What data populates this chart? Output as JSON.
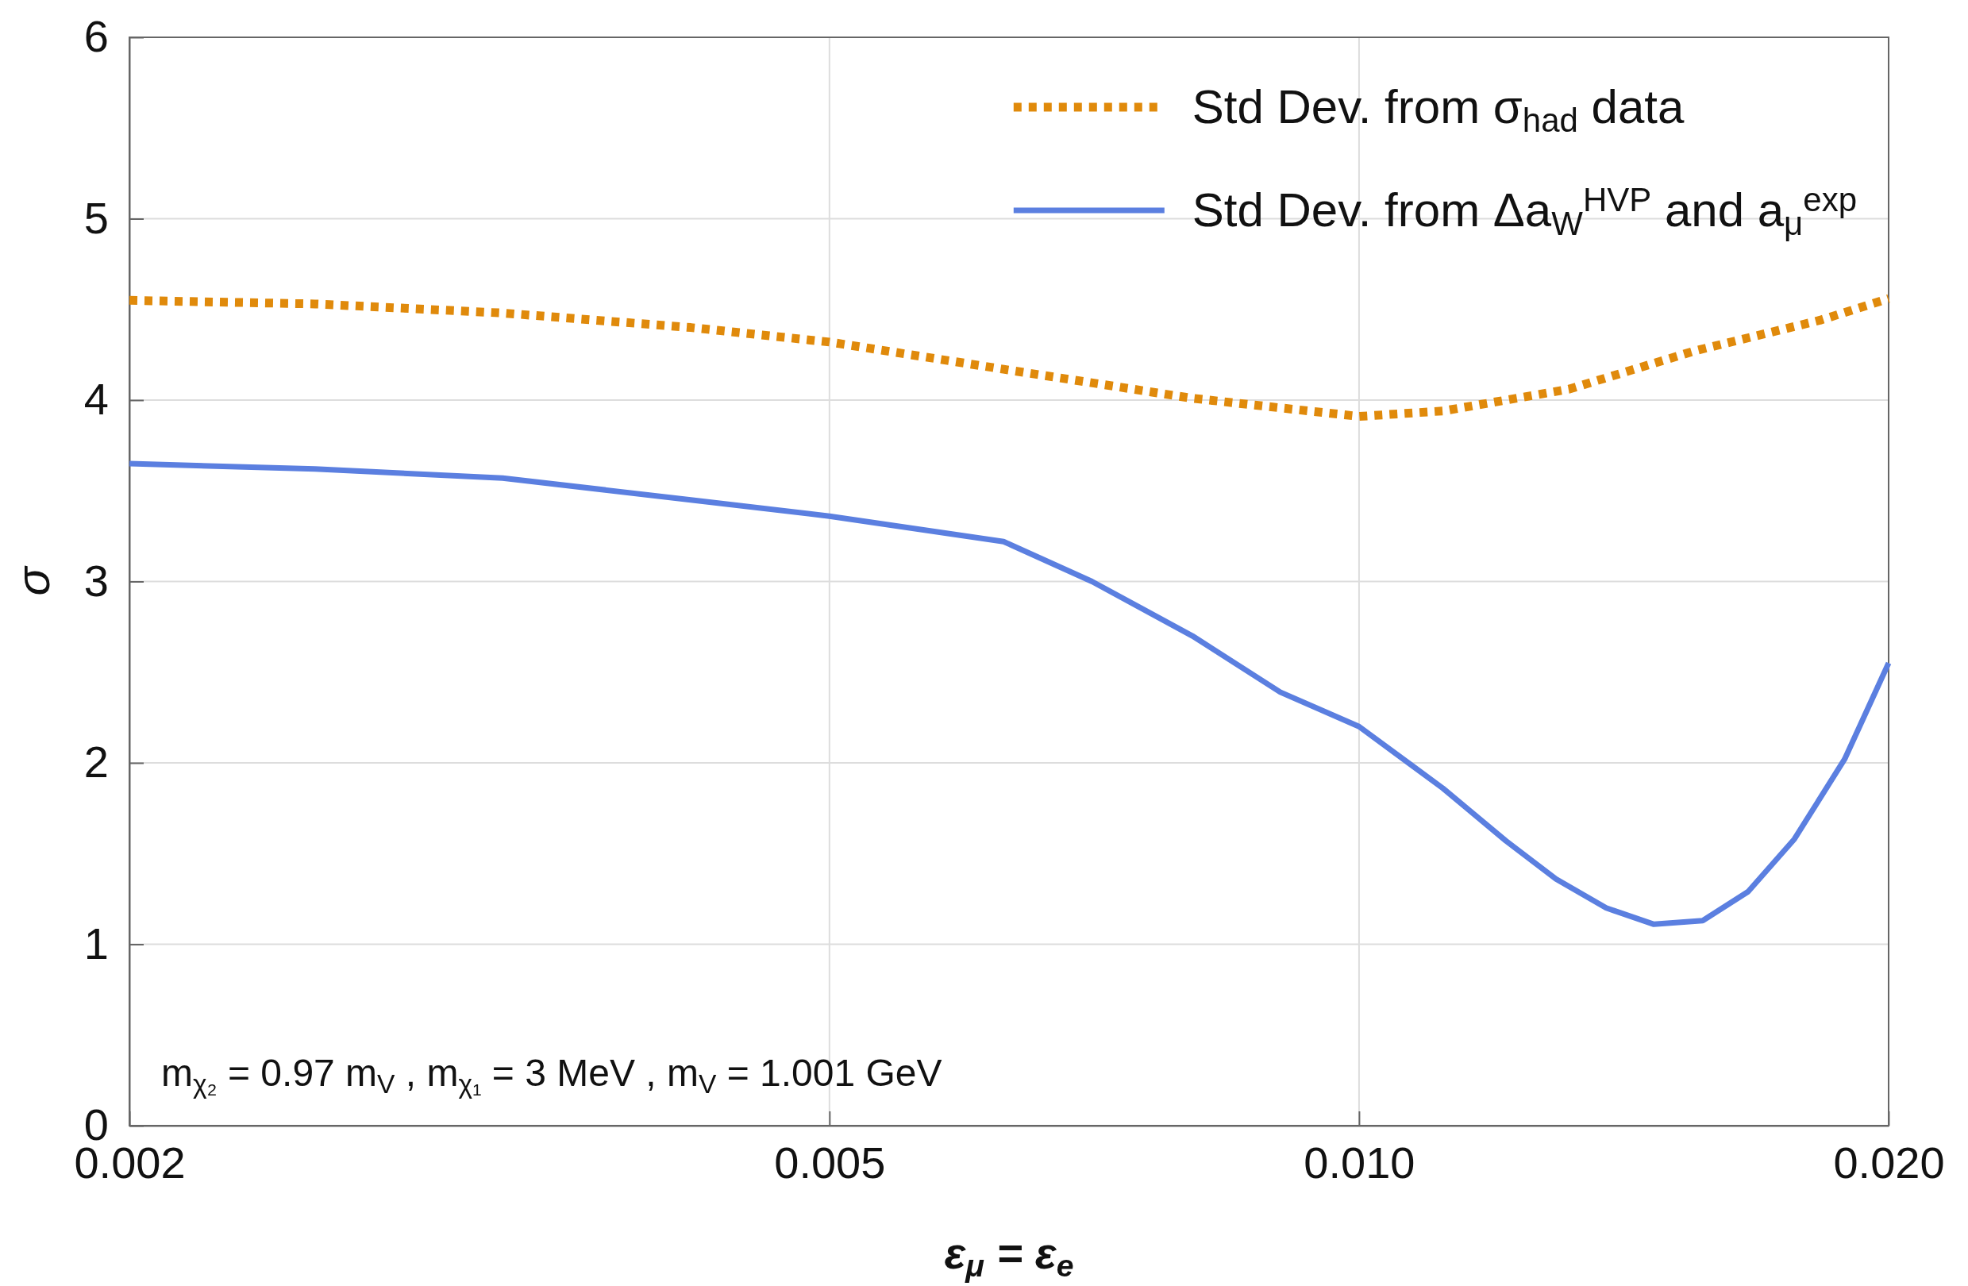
{
  "chart_data": {
    "type": "line",
    "xlabel": "ε$_{μ}$ = ε$_{e}$",
    "ylabel": "σ",
    "log": "x",
    "xlim": [
      0.002,
      0.02
    ],
    "xticks": [
      0.002,
      0.005,
      {
        "value": 0.01,
        "label": "0.010"
      },
      {
        "value": 0.02,
        "label": "0.020"
      }
    ],
    "ylim": [
      0,
      6
    ],
    "yticks": [
      0,
      1,
      2,
      3,
      4,
      5,
      6
    ],
    "grid": true,
    "legend": "top right",
    "series": [
      {
        "name": "Std Dev. from σ$_{had}$ data",
        "color": "#e08a0b",
        "line_style": "dotted",
        "x": [
          0.002,
          0.00255,
          0.00326,
          0.00417,
          0.005,
          0.00628,
          0.00804,
          0.01,
          0.01116,
          0.01316,
          0.0155,
          0.01828,
          0.02
        ],
        "values": [
          4.55,
          4.53,
          4.48,
          4.4,
          4.32,
          4.17,
          4.01,
          3.91,
          3.94,
          4.06,
          4.27,
          4.44,
          4.56
        ]
      },
      {
        "name": "Std Dev. from Δa$_{W}$$^{HVP}$  and a$_{μ}$$^{exp}$",
        "color": "#5b7fe0",
        "line_style": "solid",
        "x": [
          0.002,
          0.00255,
          0.00326,
          0.00417,
          0.005,
          0.00628,
          0.00705,
          0.00804,
          0.00902,
          0.01,
          0.01116,
          0.01212,
          0.01294,
          0.01382,
          0.01471,
          0.01568,
          0.01664,
          0.01768,
          0.01888,
          0.02
        ],
        "values": [
          3.65,
          3.62,
          3.57,
          3.45,
          3.36,
          3.22,
          3.0,
          2.7,
          2.39,
          2.2,
          1.86,
          1.57,
          1.36,
          1.2,
          1.11,
          1.13,
          1.29,
          1.58,
          2.02,
          2.55
        ]
      }
    ],
    "annotations": [
      "m$_{χ₂}$ = 0.97 m$_{V}$ , m$_{χ₁}$ = 3 MeV , m$_{V}$ = 1.001 GeV"
    ]
  }
}
